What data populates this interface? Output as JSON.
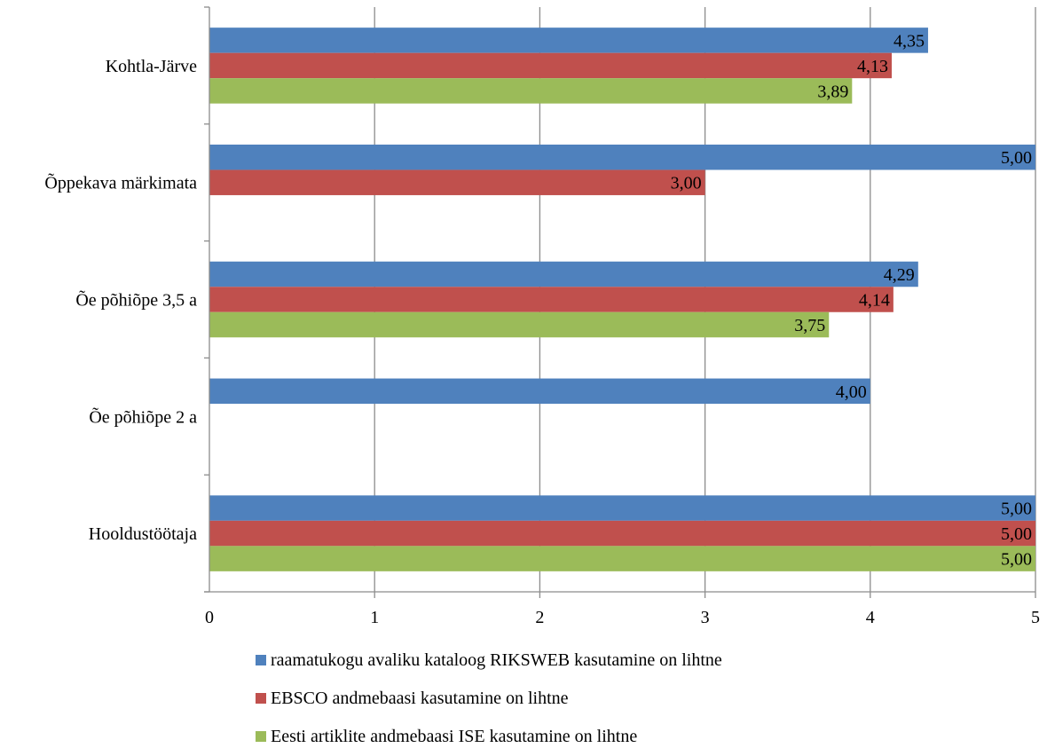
{
  "chart_data": {
    "type": "bar",
    "orientation": "horizontal",
    "categories": [
      "Kohtla-Järve",
      "Õppekava märkimata",
      "Õe põhiõpe 3,5 a",
      "Õe põhiõpe 2 a",
      "Hooldustöötaja"
    ],
    "series": [
      {
        "name": "raamatukogu avaliku kataloog RIKSWEB kasutamine on lihtne",
        "color": "#4F81BD",
        "values": [
          4.35,
          5.0,
          4.29,
          4.0,
          5.0
        ],
        "labels": [
          "4,35",
          "5,00",
          "4,29",
          "4,00",
          "5,00"
        ]
      },
      {
        "name": "EBSCO andmebaasi kasutamine on lihtne",
        "color": "#C0504D",
        "values": [
          4.13,
          3.0,
          4.14,
          null,
          5.0
        ],
        "labels": [
          "4,13",
          "3,00",
          "4,14",
          "",
          "5,00"
        ]
      },
      {
        "name": "Eesti artiklite andmebaasi ISE kasutamine on lihtne",
        "color": "#9BBB59",
        "values": [
          3.89,
          null,
          3.75,
          null,
          5.0
        ],
        "labels": [
          "3,89",
          "",
          "3,75",
          "",
          "5,00"
        ]
      }
    ],
    "xlim": [
      0,
      5
    ],
    "xticks": [
      "0",
      "1",
      "2",
      "3",
      "4",
      "5"
    ],
    "grid": true,
    "legend_position": "bottom"
  }
}
